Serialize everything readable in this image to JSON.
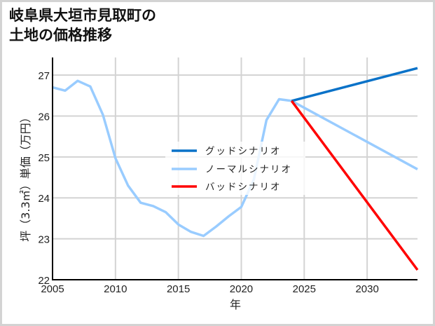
{
  "title": {
    "line1": "岐阜県大垣市見取町の",
    "line2": "土地の価格推移"
  },
  "chart_data": {
    "type": "line",
    "title": "岐阜県大垣市見取町の土地の価格推移",
    "xlabel": "年",
    "ylabel": "坪（3.3㎡）単価（万円）",
    "xlim": [
      2005,
      2034
    ],
    "ylim": [
      22,
      27.43
    ],
    "x_ticks": [
      2005,
      2010,
      2015,
      2020,
      2025,
      2030
    ],
    "y_ticks": [
      22,
      23,
      24,
      25,
      26,
      27
    ],
    "grid": true,
    "legend_position": "center",
    "legend": [
      "グッドシナリオ",
      "ノーマルシナリオ",
      "バッドシナリオ"
    ],
    "series": [
      {
        "name": "ノーマルシナリオ",
        "color": "#99ccff",
        "x": [
          2005,
          2006,
          2007,
          2008,
          2009,
          2010,
          2011,
          2012,
          2013,
          2014,
          2015,
          2016,
          2017,
          2018,
          2019,
          2020,
          2021,
          2022,
          2023,
          2024,
          2034
        ],
        "values": [
          26.7,
          26.62,
          26.86,
          26.72,
          26.03,
          24.97,
          24.3,
          23.88,
          23.8,
          23.65,
          23.35,
          23.17,
          23.07,
          23.3,
          23.55,
          23.78,
          24.45,
          25.9,
          26.41,
          26.37,
          24.7
        ]
      },
      {
        "name": "グッドシナリオ",
        "color": "#0a72c8",
        "x": [
          2024,
          2034
        ],
        "values": [
          26.37,
          27.17
        ]
      },
      {
        "name": "バッドシナリオ",
        "color": "#ff0000",
        "x": [
          2024,
          2034
        ],
        "values": [
          26.37,
          22.24
        ]
      }
    ]
  }
}
